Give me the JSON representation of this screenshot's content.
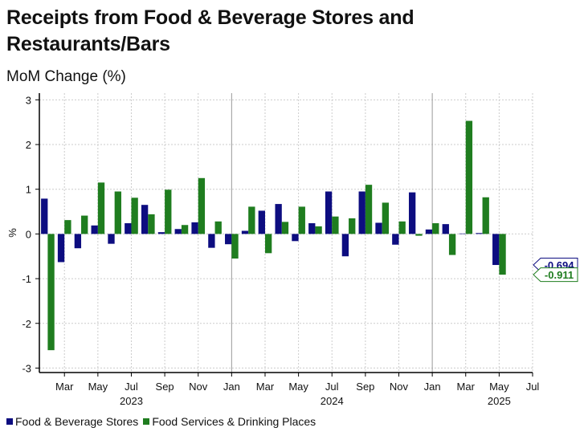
{
  "title": "Receipts from Food & Beverage Stores and Restaurants/Bars",
  "subtitle": "MoM Change (%)",
  "colors": {
    "series1": "#0d0d80",
    "series2": "#1f7d1f",
    "grid": "#cccccc"
  },
  "chart_data": {
    "type": "bar",
    "ylabel": "%",
    "ylim": [
      -3.1,
      3.15
    ],
    "yticks": [
      -3,
      -2,
      -1,
      0,
      1,
      2,
      3
    ],
    "grid": true,
    "legend_position": "bottom-left",
    "categories": [
      "2023-02",
      "2023-03",
      "2023-04",
      "2023-05",
      "2023-06",
      "2023-07",
      "2023-08",
      "2023-09",
      "2023-10",
      "2023-11",
      "2023-12",
      "2024-01",
      "2024-02",
      "2024-03",
      "2024-04",
      "2024-05",
      "2024-06",
      "2024-07",
      "2024-08",
      "2024-09",
      "2024-10",
      "2024-11",
      "2024-12",
      "2025-01",
      "2025-02",
      "2025-03",
      "2025-04",
      "2025-05"
    ],
    "month_ticks": [
      {
        "label": "Mar",
        "date": "2023-03"
      },
      {
        "label": "May",
        "date": "2023-05"
      },
      {
        "label": "Jul",
        "date": "2023-07"
      },
      {
        "label": "Sep",
        "date": "2023-09"
      },
      {
        "label": "Nov",
        "date": "2023-11"
      },
      {
        "label": "Jan",
        "date": "2024-01"
      },
      {
        "label": "Mar",
        "date": "2024-03"
      },
      {
        "label": "May",
        "date": "2024-05"
      },
      {
        "label": "Jul",
        "date": "2024-07"
      },
      {
        "label": "Sep",
        "date": "2024-09"
      },
      {
        "label": "Nov",
        "date": "2024-11"
      },
      {
        "label": "Jan",
        "date": "2025-01"
      },
      {
        "label": "Mar",
        "date": "2025-03"
      },
      {
        "label": "May",
        "date": "2025-05"
      },
      {
        "label": "Jul",
        "date": "2025-07"
      }
    ],
    "year_labels": [
      {
        "label": "2023",
        "date": "2023-07"
      },
      {
        "label": "2024",
        "date": "2024-07"
      },
      {
        "label": "2025",
        "date": "2025-05"
      }
    ],
    "series": [
      {
        "name": "Food & Beverage Stores",
        "values": [
          0.79,
          -0.63,
          -0.32,
          0.19,
          -0.22,
          0.24,
          0.65,
          0.04,
          0.11,
          0.26,
          -0.31,
          -0.23,
          0.07,
          0.52,
          0.67,
          -0.16,
          0.24,
          0.95,
          -0.5,
          0.95,
          0.25,
          -0.24,
          0.93,
          0.1,
          0.22,
          0.01,
          0.02,
          -0.694
        ]
      },
      {
        "name": "Food Services & Drinking Places",
        "values": [
          -2.6,
          0.31,
          0.41,
          1.15,
          0.95,
          0.81,
          0.44,
          0.99,
          0.2,
          1.25,
          0.28,
          -0.55,
          0.61,
          -0.43,
          0.27,
          0.61,
          0.17,
          0.39,
          0.35,
          1.1,
          0.7,
          0.28,
          -0.04,
          0.24,
          -0.47,
          2.53,
          0.82,
          -0.911
        ]
      }
    ],
    "end_labels": [
      {
        "series": 0,
        "text": "-0.694"
      },
      {
        "series": 1,
        "text": "-0.911"
      }
    ]
  }
}
